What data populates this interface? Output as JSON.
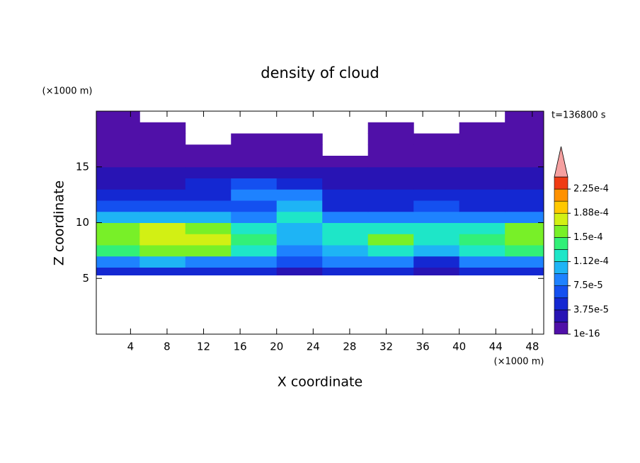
{
  "chart_data": {
    "type": "contour",
    "title": "density of cloud",
    "xlabel": "X coordinate",
    "ylabel": "Z coordinate",
    "x_unit": "(×1000 m)",
    "y_unit": "(×1000 m)",
    "time_label": "t=136800 s",
    "xlim": [
      0.25,
      49.25
    ],
    "ylim": [
      0,
      20
    ],
    "xticks": [
      4,
      8,
      12,
      16,
      20,
      24,
      28,
      32,
      36,
      40,
      44,
      48
    ],
    "yticks": [
      5,
      10,
      15
    ],
    "x_edges": [
      0,
      5,
      10,
      15,
      20,
      25,
      30,
      35,
      40,
      45,
      50
    ],
    "z_edges": [
      5.3,
      6,
      7,
      8,
      9,
      10,
      11,
      12,
      13,
      14,
      15,
      16,
      17,
      18,
      19,
      20
    ],
    "field": [
      [
        4e-05,
        4e-05,
        4e-05,
        4e-05,
        3e-05,
        4e-05,
        4e-05,
        3e-05,
        4e-05,
        4e-05
      ],
      [
        9e-05,
        0.0001,
        9e-05,
        8e-05,
        6e-05,
        8e-05,
        9e-05,
        5e-05,
        8e-05,
        9e-05
      ],
      [
        0.00014,
        0.00016,
        0.00015,
        0.00012,
        8e-05,
        0.00011,
        0.00013,
        0.0001,
        0.00013,
        0.00014
      ],
      [
        0.00016,
        0.000175,
        0.00017,
        0.00014,
        0.0001,
        0.00013,
        0.00015,
        0.00013,
        0.00014,
        0.00016
      ],
      [
        0.00015,
        0.00017,
        0.00016,
        0.00013,
        0.00011,
        0.00012,
        0.00013,
        0.00012,
        0.00013,
        0.00015
      ],
      [
        0.0001,
        0.00011,
        0.0001,
        9e-05,
        0.00012,
        8e-05,
        8e-05,
        9e-05,
        8e-05,
        9e-05
      ],
      [
        6e-05,
        6e-05,
        6e-05,
        7e-05,
        0.0001,
        5e-05,
        5e-05,
        6e-05,
        5e-05,
        5e-05
      ],
      [
        4.5e-05,
        4.5e-05,
        5e-05,
        8e-05,
        8e-05,
        4e-05,
        4e-05,
        4.5e-05,
        4e-05,
        4e-05
      ],
      [
        3.5e-05,
        3.5e-05,
        4e-05,
        6e-05,
        5e-05,
        3e-05,
        3e-05,
        3.5e-05,
        3e-05,
        3e-05
      ],
      [
        2.5e-05,
        2.5e-05,
        3e-05,
        3e-05,
        2.5e-05,
        2e-05,
        2e-05,
        2.5e-05,
        2e-05,
        2.5e-05
      ],
      [
        1.5e-05,
        1.5e-05,
        1.5e-05,
        1.5e-05,
        1.5e-05,
        1e-05,
        1e-05,
        1.5e-05,
        1.5e-05,
        1.5e-05
      ],
      [
        5e-06,
        5e-06,
        5e-06,
        5e-06,
        5e-06,
        null,
        5e-06,
        5e-06,
        5e-06,
        5e-06
      ],
      [
        5e-06,
        5e-06,
        null,
        5e-06,
        5e-06,
        null,
        5e-06,
        5e-06,
        5e-06,
        5e-06
      ],
      [
        5e-06,
        5e-06,
        null,
        null,
        null,
        null,
        5e-06,
        null,
        5e-06,
        5e-06
      ],
      [
        5e-06,
        null,
        null,
        null,
        null,
        null,
        null,
        null,
        null,
        5e-06
      ]
    ],
    "colorbar": {
      "levels": [
        1e-16,
        1.875e-05,
        3.75e-05,
        5.625e-05,
        7.5e-05,
        9.375e-05,
        0.0001125,
        0.00013125,
        0.00015,
        0.00016875,
        0.0001875,
        0.00020625,
        0.000225,
        0.00024375
      ],
      "colors": [
        "#5010a8",
        "#2814b4",
        "#1428d2",
        "#1450f0",
        "#1e82ff",
        "#1eb4f5",
        "#1ee6c8",
        "#32f078",
        "#78f028",
        "#d2f014",
        "#ffc800",
        "#ff9100",
        "#f03c14"
      ],
      "overflow_color": "#f5a0a0",
      "ticks": [
        {
          "value": 1e-16,
          "label": "1e-16"
        },
        {
          "value": 3.75e-05,
          "label": "3.75e-5"
        },
        {
          "value": 7.5e-05,
          "label": "7.5e-5"
        },
        {
          "value": 0.0001125,
          "label": "1.12e-4"
        },
        {
          "value": 0.00015,
          "label": "1.5e-4"
        },
        {
          "value": 0.0001875,
          "label": "1.88e-4"
        },
        {
          "value": 0.000225,
          "label": "2.25e-4"
        }
      ]
    }
  }
}
